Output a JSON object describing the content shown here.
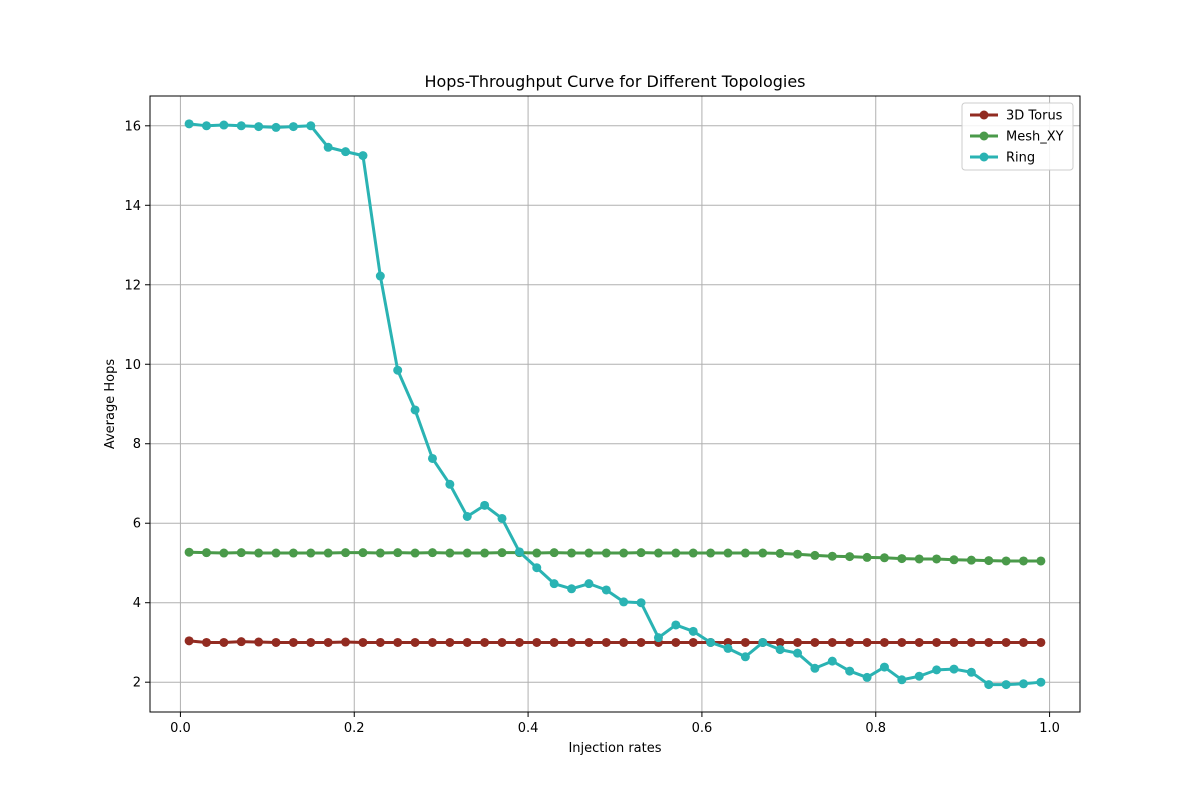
{
  "chart_data": {
    "type": "line",
    "title": "Hops-Throughput Curve for Different Topologies",
    "xlabel": "Injection rates",
    "ylabel": "Average Hops",
    "xlim": [
      -0.035,
      1.035
    ],
    "ylim": [
      1.25,
      16.75
    ],
    "xticks": [
      0.0,
      0.2,
      0.4,
      0.6,
      0.8,
      1.0
    ],
    "xtick_labels": [
      "0.0",
      "0.2",
      "0.4",
      "0.6",
      "0.8",
      "1.0"
    ],
    "yticks": [
      2,
      4,
      6,
      8,
      10,
      12,
      14,
      16
    ],
    "ytick_labels": [
      "2",
      "4",
      "6",
      "8",
      "10",
      "12",
      "14",
      "16"
    ],
    "grid": true,
    "legend_position": "top-right",
    "x": [
      0.01,
      0.03,
      0.05,
      0.07,
      0.09,
      0.11,
      0.13,
      0.15,
      0.17,
      0.19,
      0.21,
      0.23,
      0.25,
      0.27,
      0.29,
      0.31,
      0.33,
      0.35,
      0.37,
      0.39,
      0.41,
      0.43,
      0.45,
      0.47,
      0.49,
      0.51,
      0.53,
      0.55,
      0.57,
      0.59,
      0.61,
      0.63,
      0.65,
      0.67,
      0.69,
      0.71,
      0.73,
      0.75,
      0.77,
      0.79,
      0.81,
      0.83,
      0.85,
      0.87,
      0.89,
      0.91,
      0.93,
      0.95,
      0.97,
      0.99
    ],
    "series": [
      {
        "name": "3D Torus",
        "color": "#922b21",
        "values": [
          3.04,
          3.0,
          3.0,
          3.02,
          3.01,
          3.0,
          3.0,
          3.0,
          3.0,
          3.01,
          3.0,
          3.0,
          3.0,
          3.0,
          3.0,
          3.0,
          3.0,
          3.0,
          3.0,
          3.0,
          3.0,
          3.0,
          3.0,
          3.0,
          3.0,
          3.0,
          3.0,
          3.0,
          3.0,
          3.0,
          3.0,
          3.0,
          3.0,
          3.0,
          3.0,
          3.0,
          3.0,
          3.0,
          3.0,
          3.0,
          3.0,
          3.0,
          3.0,
          3.0,
          3.0,
          3.0,
          3.0,
          3.0,
          3.0,
          3.0
        ]
      },
      {
        "name": "Mesh_XY",
        "color": "#4a9a4a",
        "values": [
          5.27,
          5.26,
          5.25,
          5.26,
          5.25,
          5.25,
          5.25,
          5.25,
          5.25,
          5.26,
          5.26,
          5.25,
          5.26,
          5.25,
          5.26,
          5.25,
          5.25,
          5.25,
          5.26,
          5.26,
          5.25,
          5.26,
          5.25,
          5.25,
          5.25,
          5.25,
          5.26,
          5.25,
          5.25,
          5.25,
          5.25,
          5.25,
          5.25,
          5.25,
          5.24,
          5.22,
          5.19,
          5.17,
          5.16,
          5.14,
          5.13,
          5.11,
          5.1,
          5.1,
          5.08,
          5.07,
          5.06,
          5.05,
          5.05,
          5.05
        ]
      },
      {
        "name": "Ring",
        "color": "#2ab3b3",
        "values": [
          16.05,
          16.0,
          16.02,
          16.0,
          15.98,
          15.96,
          15.98,
          16.0,
          15.46,
          15.35,
          15.25,
          12.22,
          9.85,
          8.85,
          7.63,
          6.98,
          6.17,
          6.45,
          6.12,
          5.28,
          4.88,
          4.48,
          4.35,
          4.48,
          4.32,
          4.02,
          4.0,
          3.12,
          3.44,
          3.28,
          3.0,
          2.85,
          2.64,
          3.0,
          2.82,
          2.73,
          2.35,
          2.53,
          2.28,
          2.12,
          2.38,
          2.06,
          2.15,
          2.31,
          2.33,
          2.25,
          1.94,
          1.94,
          1.96,
          2.0
        ]
      }
    ]
  }
}
